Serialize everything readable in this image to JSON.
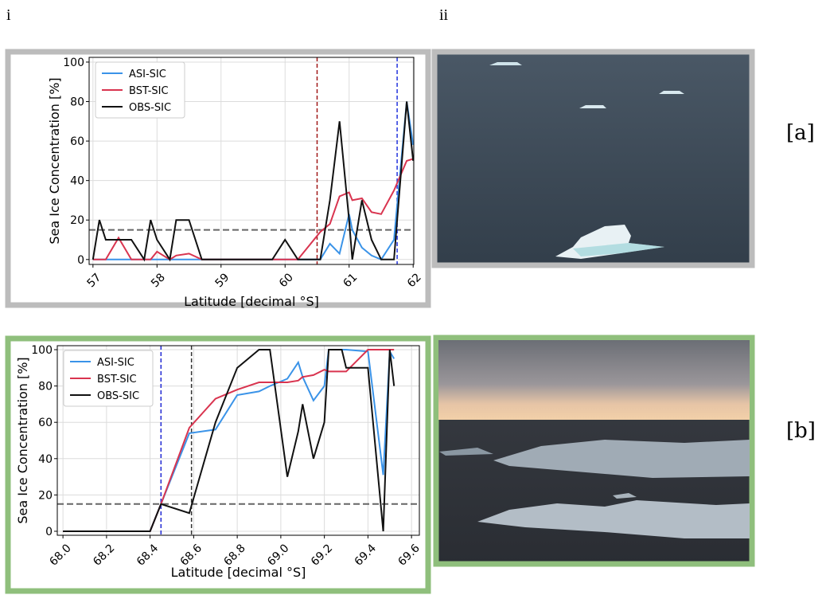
{
  "panel_labels": [
    "i",
    "ii"
  ],
  "row_labels": [
    "[a]",
    "[b]"
  ],
  "chart_data": [
    {
      "type": "line",
      "ylabel": "Sea Ice Concentration [%]",
      "xlabel": "Latitude [decimal °S]",
      "xlim": [
        56.94,
        62.01
      ],
      "ylim": [
        -2.5,
        102.4
      ],
      "xticks": [
        57,
        58,
        59,
        60,
        61,
        62
      ],
      "yticks": [
        0,
        20,
        40,
        60,
        80,
        100
      ],
      "grid": true,
      "legend": "upper left",
      "threshold": 15,
      "vlines": [
        {
          "x": 60.5,
          "color": "#a01818"
        },
        {
          "x": 61.75,
          "color": "#2233dd"
        }
      ],
      "x": [
        57.0,
        57.1,
        57.2,
        57.4,
        57.6,
        57.8,
        57.9,
        58.0,
        58.2,
        58.3,
        58.5,
        58.7,
        59.0,
        59.8,
        60.0,
        60.2,
        60.55,
        60.7,
        60.85,
        61.0,
        61.05,
        61.2,
        61.35,
        61.5,
        61.7,
        61.9,
        62.0
      ],
      "series": [
        {
          "name": "ASI-SIC",
          "color": "#3a93e8",
          "values": [
            0,
            0,
            0,
            0,
            0,
            0,
            0,
            0,
            0,
            0,
            0,
            0,
            0,
            0,
            0,
            0,
            0,
            8,
            3,
            23,
            15,
            6,
            2,
            0,
            10,
            80,
            58
          ]
        },
        {
          "name": "BST-SIC",
          "color": "#d9344f",
          "values": [
            0,
            0,
            0,
            11,
            0,
            0,
            0,
            4,
            0,
            2,
            3,
            0,
            0,
            0,
            0,
            0,
            14,
            18,
            32,
            34,
            30,
            31,
            24,
            23,
            35,
            50,
            51
          ]
        },
        {
          "name": "OBS-SIC",
          "color": "#111111",
          "values": [
            0,
            20,
            10,
            10,
            10,
            0,
            20,
            10,
            0,
            20,
            20,
            0,
            0,
            0,
            10,
            0,
            0,
            30,
            70,
            20,
            0,
            30,
            10,
            0,
            0,
            80,
            50
          ]
        }
      ]
    },
    {
      "type": "line",
      "ylabel": "Sea Ice Concentration [%]",
      "xlabel": "Latitude [decimal °S]",
      "xlim": [
        67.974,
        69.636
      ],
      "ylim": [
        -2.2,
        102.2
      ],
      "xticks": [
        {
          "value": 68,
          "label": "68.0"
        },
        68.2,
        68.4,
        68.6,
        68.8,
        {
          "value": 69,
          "label": "69.0"
        },
        69.2,
        69.4,
        69.6
      ],
      "yticks": [
        0,
        20,
        40,
        60,
        80,
        100
      ],
      "grid": true,
      "legend": "upper left",
      "threshold": 15,
      "vlines": [
        {
          "x": 68.45,
          "color": "#d9344f"
        },
        {
          "x": 68.45,
          "color": "#2233dd"
        },
        {
          "x": 68.59,
          "color": "#333333"
        }
      ],
      "x": [
        68.0,
        68.4,
        68.45,
        68.58,
        68.7,
        68.8,
        68.9,
        68.95,
        69.03,
        69.08,
        69.1,
        69.15,
        69.2,
        69.22,
        69.28,
        69.3,
        69.4,
        69.47,
        69.5,
        69.52
      ],
      "series": [
        {
          "name": "ASI-SIC",
          "color": "#3a93e8",
          "values": [
            0,
            0,
            15,
            54,
            56,
            75,
            77,
            80,
            84,
            93,
            85,
            72,
            80,
            100,
            100,
            100,
            99,
            31,
            99,
            95
          ]
        },
        {
          "name": "BST-SIC",
          "color": "#d9344f",
          "values": [
            0,
            0,
            15,
            57,
            73,
            78,
            82,
            82,
            82,
            83,
            85,
            86,
            89,
            88,
            88,
            88,
            100,
            100,
            100,
            100
          ]
        },
        {
          "name": "OBS-SIC",
          "color": "#111111",
          "values": [
            0,
            0,
            15,
            10,
            60,
            90,
            100,
            100,
            30,
            55,
            70,
            40,
            60,
            100,
            100,
            90,
            90,
            0,
            100,
            80
          ]
        }
      ]
    }
  ]
}
